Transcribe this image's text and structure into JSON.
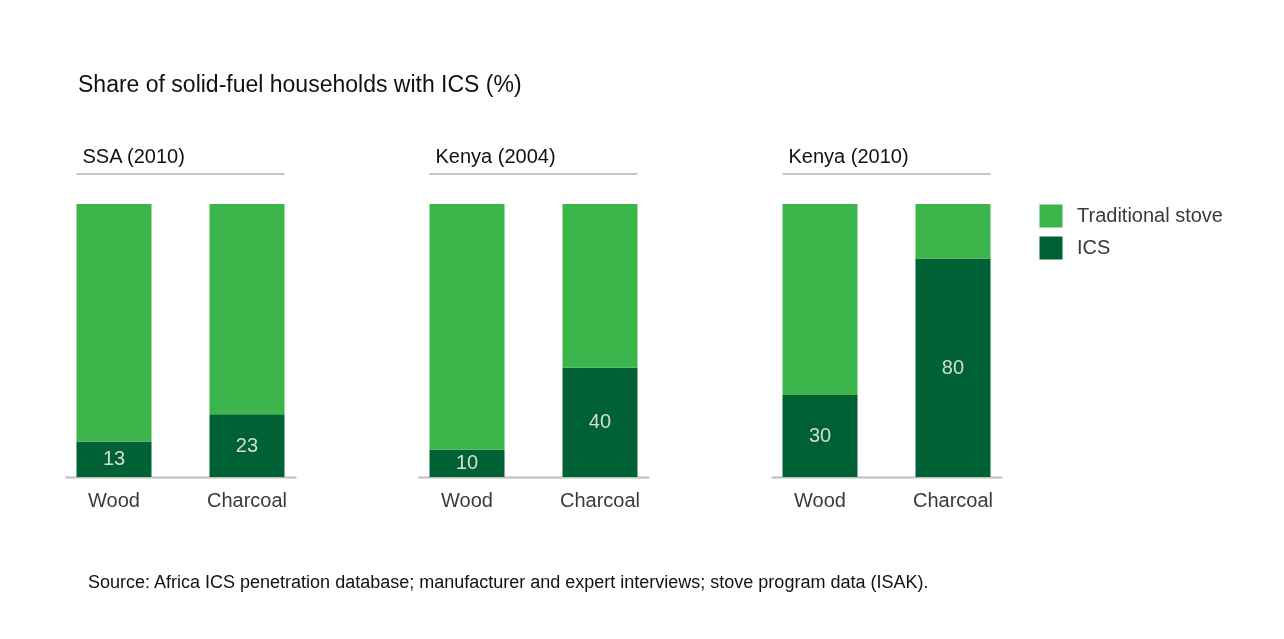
{
  "chart_data": [
    {
      "type": "bar",
      "title": "Share of solid-fuel households with ICS (%)",
      "subtitle": "SSA (2010)",
      "categories": [
        "Wood",
        "Charcoal"
      ],
      "stacked": true,
      "ylim": [
        0,
        100
      ],
      "tick_labels": "x",
      "legend": "right",
      "series": [
        {
          "name": "ICS",
          "color": "#006134",
          "values": [
            13,
            23
          ],
          "value_labels": [
            "13",
            "23"
          ]
        },
        {
          "name": "Traditional stove",
          "color": "#3cb54a",
          "values": [
            87,
            77
          ]
        }
      ],
      "annotations": [
        "Source: Africa ICS penetration database; manufacturer and expert interviews; stove program data (ISAK)."
      ]
    },
    {
      "type": "bar",
      "subtitle": "Kenya (2004)",
      "categories": [
        "Wood",
        "Charcoal"
      ],
      "stacked": true,
      "ylim": [
        0,
        100
      ],
      "tick_labels": "x",
      "series": [
        {
          "color": "#006134",
          "values": [
            10,
            40
          ],
          "value_labels": [
            "10",
            "40"
          ]
        },
        {
          "color": "#3cb54a",
          "values": [
            90,
            60
          ]
        }
      ]
    },
    {
      "type": "bar",
      "subtitle": "Kenya (2010)",
      "categories": [
        "Wood",
        "Charcoal"
      ],
      "stacked": true,
      "ylim": [
        0,
        100
      ],
      "tick_labels": "x",
      "series": [
        {
          "color": "#006134",
          "values": [
            30,
            80
          ],
          "value_labels": [
            "30",
            "80"
          ]
        },
        {
          "color": "#3cb54a",
          "values": [
            70,
            20
          ]
        }
      ]
    }
  ]
}
